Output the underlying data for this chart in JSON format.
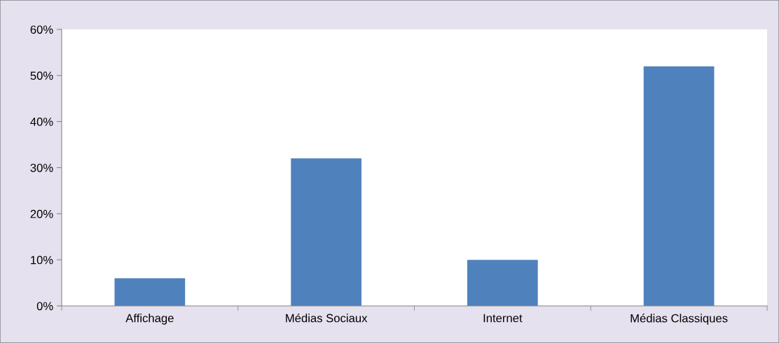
{
  "chart_data": {
    "type": "bar",
    "categories": [
      "Affichage",
      "Médias Sociaux",
      "Internet",
      "Médias Classiques"
    ],
    "values": [
      6,
      32,
      10,
      52
    ],
    "color": "#4f81bd",
    "ylim": [
      0,
      60
    ],
    "yticks": [
      {
        "value": 0,
        "label": "0%"
      },
      {
        "value": 10,
        "label": "10%"
      },
      {
        "value": 20,
        "label": "20%"
      },
      {
        "value": 30,
        "label": "30%"
      },
      {
        "value": 40,
        "label": "40%"
      },
      {
        "value": 50,
        "label": "50%"
      },
      {
        "value": 60,
        "label": "60%"
      }
    ],
    "grid": false,
    "legend": false
  }
}
